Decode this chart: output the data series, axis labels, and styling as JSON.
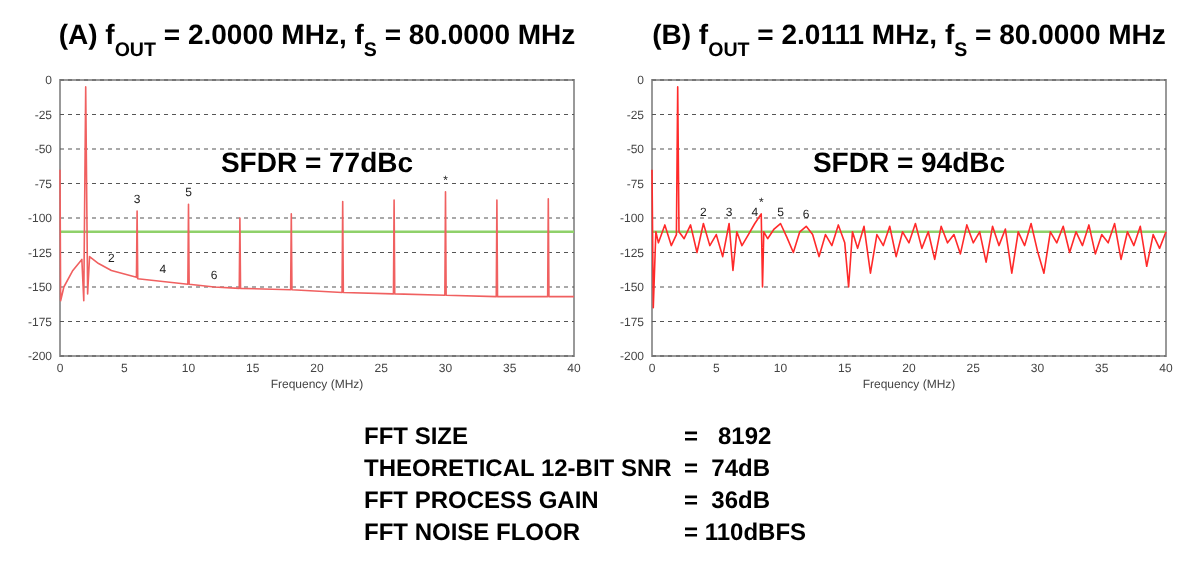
{
  "chart_data": [
    {
      "type": "line",
      "title": "(A) f$_{OUT}$ = 2.0000 MHz, f$_{S}$ = 80.0000 MHz",
      "xlabel": "Frequency (MHz)",
      "xlim": [
        0,
        40
      ],
      "xticks": [
        0,
        5,
        10,
        15,
        20,
        25,
        30,
        35,
        40
      ],
      "ylim": [
        -200,
        0
      ],
      "yticks": [
        -200,
        -175,
        -150,
        -125,
        -100,
        -75,
        -50,
        -25,
        0
      ],
      "grid": "y",
      "marker": "none",
      "line_style": "solid",
      "ref_lines": [
        {
          "axis": "y",
          "value": -110,
          "color": "#8fd16a"
        }
      ],
      "annotations": [
        "SFDR = 77dBc",
        {
          "text": "2",
          "x": 4,
          "y": -138
        },
        {
          "text": "3",
          "x": 6,
          "y": -95
        },
        {
          "text": "4",
          "x": 8,
          "y": -146
        },
        {
          "text": "5",
          "x": 10,
          "y": -90
        },
        {
          "text": "6",
          "x": 12,
          "y": -150
        },
        {
          "text": "*",
          "x": 30,
          "y": -81
        }
      ],
      "series": [
        {
          "color": "#f06060",
          "x": [
            0,
            0.05,
            0.3,
            1,
            1.7,
            1.85,
            2,
            2.15,
            2.3,
            3,
            4,
            5.95,
            6,
            6.05,
            8,
            9.95,
            10,
            10.05,
            12,
            13.95,
            14,
            14.05,
            17.95,
            18,
            18.05,
            21.95,
            22,
            22.05,
            25.95,
            26,
            26.05,
            29.95,
            30,
            30.05,
            33.95,
            34,
            34.05,
            37.95,
            38,
            38.05,
            40
          ],
          "values": [
            -65,
            -160,
            -150,
            -138,
            -130,
            -160,
            -5,
            -155,
            -128,
            -133,
            -138,
            -143,
            -95,
            -144,
            -146,
            -148,
            -90,
            -148,
            -150,
            -151,
            -100,
            -151,
            -152,
            -97,
            -152,
            -154,
            -88,
            -154,
            -155,
            -87,
            -155,
            -156,
            -81,
            -156,
            -157,
            -87,
            -157,
            -157,
            -86,
            -157,
            -157
          ]
        }
      ]
    },
    {
      "type": "line",
      "title": "(B) f$_{OUT}$ = 2.0111 MHz, f$_{S}$ = 80.0000 MHz",
      "xlabel": "Frequency (MHz)",
      "xlim": [
        0,
        40
      ],
      "xticks": [
        0,
        5,
        10,
        15,
        20,
        25,
        30,
        35,
        40
      ],
      "ylim": [
        -200,
        0
      ],
      "yticks": [
        -200,
        -175,
        -150,
        -125,
        -100,
        -75,
        -50,
        -25,
        0
      ],
      "grid": "y",
      "marker": "none",
      "line_style": "solid",
      "ref_lines": [
        {
          "axis": "y",
          "value": -110,
          "color": "#8fd16a"
        }
      ],
      "annotations": [
        "SFDR = 94dBc",
        {
          "text": "2",
          "x": 4,
          "y": -104
        },
        {
          "text": "3",
          "x": 6,
          "y": -104
        },
        {
          "text": "4",
          "x": 8,
          "y": -104
        },
        {
          "text": "5",
          "x": 10,
          "y": -104
        },
        {
          "text": "6",
          "x": 12,
          "y": -106
        },
        {
          "text": "*",
          "x": 8.5,
          "y": -97
        }
      ],
      "series": [
        {
          "color": "#ff2a2a",
          "x": [
            0,
            0.1,
            0.3,
            0.5,
            1,
            1.5,
            1.9,
            2,
            2.1,
            2.5,
            3,
            3.5,
            4,
            4.5,
            5,
            5.5,
            6,
            6.3,
            6.6,
            7,
            7.5,
            8,
            8.5,
            8.6,
            8.7,
            9,
            9.5,
            10,
            10.5,
            11,
            11.5,
            12,
            12.5,
            13,
            13.5,
            14,
            14.5,
            15,
            15.3,
            15.6,
            16,
            16.5,
            17,
            17.5,
            18,
            18.5,
            19,
            19.5,
            20,
            20.5,
            21,
            21.5,
            22,
            22.5,
            23,
            23.5,
            24,
            24.5,
            25,
            25.5,
            26,
            26.5,
            27,
            27.5,
            28,
            28.5,
            29,
            29.5,
            30,
            30.5,
            31,
            31.5,
            32,
            32.5,
            33,
            33.5,
            34,
            34.5,
            35,
            35.5,
            36,
            36.5,
            37,
            37.5,
            38,
            38.5,
            39,
            39.5,
            40
          ],
          "values": [
            -65,
            -165,
            -110,
            -118,
            -105,
            -120,
            -112,
            -5,
            -110,
            -115,
            -105,
            -125,
            -104,
            -120,
            -112,
            -128,
            -104,
            -138,
            -110,
            -120,
            -112,
            -104,
            -97,
            -150,
            -110,
            -115,
            -108,
            -104,
            -114,
            -125,
            -110,
            -106,
            -112,
            -128,
            -112,
            -120,
            -105,
            -118,
            -150,
            -110,
            -122,
            -106,
            -140,
            -112,
            -120,
            -106,
            -128,
            -110,
            -118,
            -104,
            -122,
            -110,
            -130,
            -106,
            -118,
            -112,
            -126,
            -105,
            -118,
            -110,
            -132,
            -106,
            -120,
            -108,
            -140,
            -110,
            -120,
            -104,
            -124,
            -140,
            -110,
            -118,
            -106,
            -125,
            -110,
            -120,
            -105,
            -126,
            -112,
            -118,
            -104,
            -130,
            -110,
            -120,
            -106,
            -135,
            -112,
            -122,
            -110
          ]
        }
      ]
    },
    {
      "type": "other",
      "annotations": [
        "FFT SIZE",
        "=   8192",
        "THEORETICAL 12-BIT SNR",
        "=  74dB",
        "FFT PROCESS GAIN",
        "=  36dB",
        "FFT NOISE FLOOR",
        "= 110dBFS"
      ]
    }
  ]
}
